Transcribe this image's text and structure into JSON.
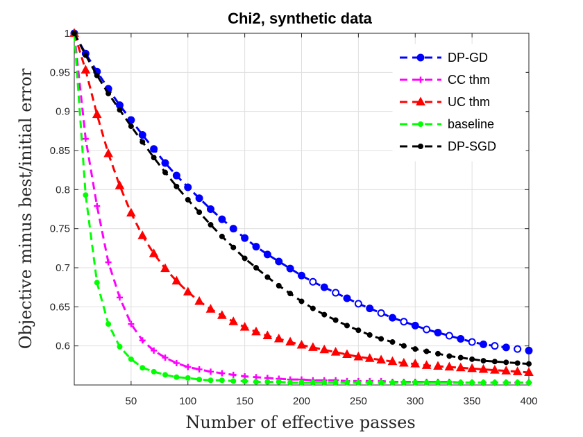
{
  "chart_data": {
    "type": "line",
    "title": "Chi2, synthetic data",
    "xlabel": "Number of effective passes",
    "ylabel": "Objective minus best/initial error",
    "xlim": [
      0,
      400
    ],
    "ylim": [
      0.55,
      1.0
    ],
    "grid": true,
    "legend_position": "top-right",
    "x_ticks": [
      50,
      100,
      150,
      200,
      250,
      300,
      350,
      400
    ],
    "y_ticks": [
      0.6,
      0.65,
      0.7,
      0.75,
      0.8,
      0.85,
      0.9,
      0.95,
      1
    ],
    "x_tick_labels": [
      "50",
      "100",
      "150",
      "200",
      "250",
      "300",
      "350",
      "400"
    ],
    "y_tick_labels": [
      "0.6",
      "0.65",
      "0.7",
      "0.75",
      "0.8",
      "0.85",
      "0.9",
      "0.95",
      "1"
    ],
    "series": [
      {
        "name": "DP-GD",
        "color": "#0000ff",
        "marker": "circle",
        "x": [
          0,
          10,
          20,
          30,
          40,
          50,
          60,
          70,
          80,
          90,
          100,
          110,
          120,
          130,
          140,
          150,
          160,
          170,
          180,
          190,
          200,
          210,
          220,
          230,
          240,
          250,
          260,
          270,
          280,
          290,
          300,
          310,
          320,
          330,
          340,
          350,
          360,
          370,
          380,
          390,
          400
        ],
        "y": [
          1.0,
          0.974,
          0.951,
          0.929,
          0.908,
          0.889,
          0.87,
          0.852,
          0.834,
          0.818,
          0.803,
          0.789,
          0.775,
          0.762,
          0.75,
          0.738,
          0.727,
          0.717,
          0.708,
          0.699,
          0.69,
          0.682,
          0.675,
          0.668,
          0.661,
          0.654,
          0.648,
          0.642,
          0.636,
          0.631,
          0.626,
          0.621,
          0.617,
          0.613,
          0.609,
          0.605,
          0.602,
          0.6,
          0.598,
          0.596,
          0.594
        ]
      },
      {
        "name": "CC thm",
        "color": "#ff00ff",
        "marker": "plus",
        "x": [
          0,
          10,
          20,
          30,
          40,
          50,
          60,
          70,
          80,
          90,
          100,
          110,
          120,
          130,
          140,
          150,
          160,
          170,
          180,
          190,
          200,
          210,
          220,
          230,
          240,
          250,
          260,
          270,
          280,
          290,
          300,
          310,
          320,
          330,
          340,
          350,
          360,
          370,
          380,
          390,
          400
        ],
        "y": [
          1.0,
          0.865,
          0.779,
          0.707,
          0.662,
          0.628,
          0.607,
          0.594,
          0.585,
          0.578,
          0.573,
          0.57,
          0.567,
          0.565,
          0.563,
          0.561,
          0.56,
          0.559,
          0.558,
          0.557,
          0.557,
          0.556,
          0.556,
          0.556,
          0.555,
          0.555,
          0.555,
          0.555,
          0.554,
          0.554,
          0.554,
          0.554,
          0.554,
          0.554,
          0.553,
          0.553,
          0.553,
          0.553,
          0.553,
          0.553,
          0.553
        ]
      },
      {
        "name": "UC thm",
        "color": "#ff0000",
        "marker": "triangle",
        "x": [
          0,
          10,
          20,
          30,
          40,
          50,
          60,
          70,
          80,
          90,
          100,
          110,
          120,
          130,
          140,
          150,
          160,
          170,
          180,
          190,
          200,
          210,
          220,
          230,
          240,
          250,
          260,
          270,
          280,
          290,
          300,
          310,
          320,
          330,
          340,
          350,
          360,
          370,
          380,
          390,
          400
        ],
        "y": [
          1.0,
          0.953,
          0.896,
          0.846,
          0.805,
          0.77,
          0.741,
          0.718,
          0.699,
          0.683,
          0.669,
          0.657,
          0.647,
          0.639,
          0.631,
          0.624,
          0.618,
          0.613,
          0.609,
          0.605,
          0.601,
          0.598,
          0.595,
          0.592,
          0.589,
          0.586,
          0.584,
          0.582,
          0.58,
          0.578,
          0.577,
          0.575,
          0.574,
          0.573,
          0.572,
          0.571,
          0.57,
          0.569,
          0.568,
          0.567,
          0.566
        ]
      },
      {
        "name": "baseline",
        "color": "#00ff00",
        "marker": "dot",
        "x": [
          0,
          10,
          20,
          30,
          40,
          50,
          60,
          70,
          80,
          90,
          100,
          110,
          120,
          130,
          140,
          150,
          160,
          170,
          180,
          190,
          200,
          210,
          220,
          230,
          240,
          250,
          260,
          270,
          280,
          290,
          300,
          310,
          320,
          330,
          340,
          350,
          360,
          370,
          380,
          390,
          400
        ],
        "y": [
          1.0,
          0.793,
          0.681,
          0.628,
          0.599,
          0.583,
          0.572,
          0.567,
          0.563,
          0.56,
          0.559,
          0.557,
          0.556,
          0.556,
          0.555,
          0.555,
          0.554,
          0.554,
          0.554,
          0.553,
          0.553,
          0.553,
          0.553,
          0.553,
          0.553,
          0.553,
          0.553,
          0.553,
          0.553,
          0.553,
          0.553,
          0.553,
          0.553,
          0.553,
          0.553,
          0.553,
          0.553,
          0.553,
          0.553,
          0.553,
          0.553
        ]
      },
      {
        "name": "DP-SGD",
        "color": "#000000",
        "marker": "dot",
        "x": [
          0,
          10,
          20,
          30,
          40,
          50,
          60,
          70,
          80,
          90,
          100,
          110,
          120,
          130,
          140,
          150,
          160,
          170,
          180,
          190,
          200,
          210,
          220,
          230,
          240,
          250,
          260,
          270,
          280,
          290,
          300,
          310,
          320,
          330,
          340,
          350,
          360,
          370,
          380,
          390,
          400
        ],
        "y": [
          1.0,
          0.972,
          0.946,
          0.923,
          0.902,
          0.881,
          0.861,
          0.841,
          0.822,
          0.804,
          0.787,
          0.771,
          0.755,
          0.74,
          0.726,
          0.712,
          0.7,
          0.688,
          0.677,
          0.667,
          0.657,
          0.648,
          0.64,
          0.633,
          0.626,
          0.62,
          0.614,
          0.609,
          0.605,
          0.6,
          0.596,
          0.593,
          0.59,
          0.587,
          0.585,
          0.583,
          0.581,
          0.58,
          0.579,
          0.578,
          0.577
        ]
      }
    ]
  }
}
